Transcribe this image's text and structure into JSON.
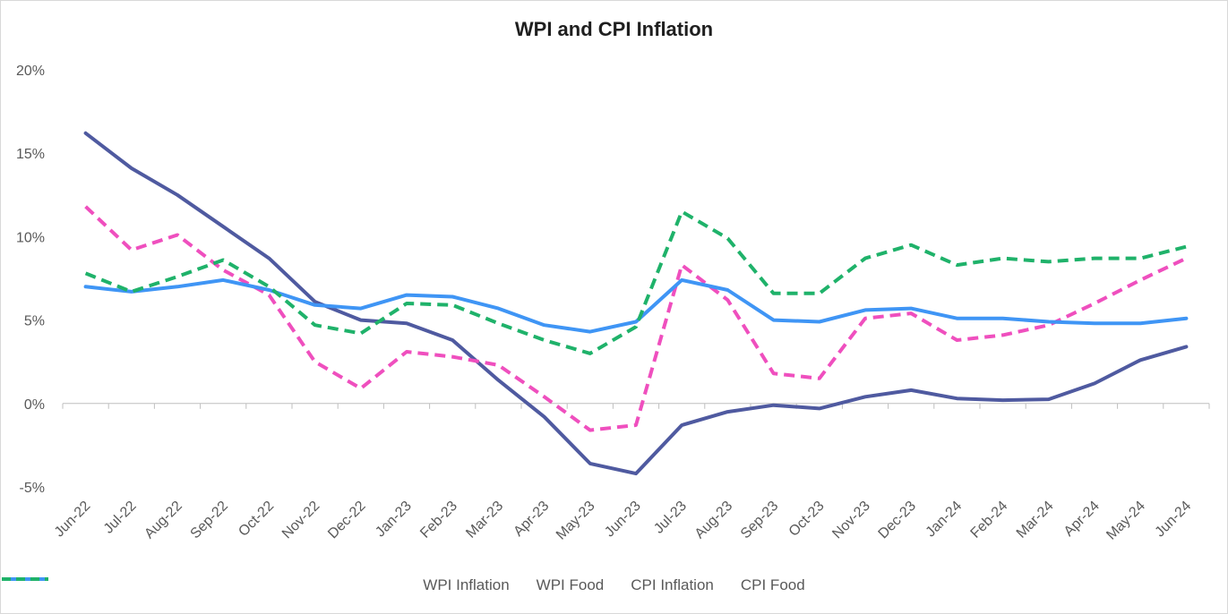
{
  "chart_data": {
    "type": "line",
    "title": "WPI and CPI Inflation",
    "xlabel": "",
    "ylabel": "",
    "ylim": [
      -5,
      20
    ],
    "yticks": [
      20,
      15,
      10,
      5,
      0,
      -5
    ],
    "ytick_labels": [
      "20%",
      "15%",
      "10%",
      "5%",
      "0%",
      "-5%"
    ],
    "categories": [
      "Jun-22",
      "Jul-22",
      "Aug-22",
      "Sep-22",
      "Oct-22",
      "Nov-22",
      "Dec-22",
      "Jan-23",
      "Feb-23",
      "Mar-23",
      "Apr-23",
      "May-23",
      "Jun-23",
      "Jul-23",
      "Aug-23",
      "Sep-23",
      "Oct-23",
      "Nov-23",
      "Dec-23",
      "Jan-24",
      "Feb-24",
      "Mar-24",
      "Apr-24",
      "May-24",
      "Jun-24"
    ],
    "series": [
      {
        "name": "WPI Inflation",
        "color": "#4f5aa0",
        "dash": "solid",
        "values": [
          16.2,
          14.1,
          12.5,
          10.6,
          8.7,
          6.1,
          5.0,
          4.8,
          3.8,
          1.4,
          -0.8,
          -3.6,
          -4.2,
          -1.3,
          -0.5,
          -0.1,
          -0.3,
          0.4,
          0.8,
          0.3,
          0.2,
          0.25,
          1.2,
          2.6,
          3.4
        ]
      },
      {
        "name": "WPI Food",
        "color": "#ef4fbe",
        "dash": "dashed",
        "values": [
          11.8,
          9.2,
          10.1,
          8.0,
          6.5,
          2.5,
          0.9,
          3.1,
          2.8,
          2.3,
          0.4,
          -1.6,
          -1.3,
          8.3,
          6.2,
          1.8,
          1.5,
          5.1,
          5.4,
          3.8,
          4.1,
          4.7,
          6.0,
          7.4,
          8.7
        ]
      },
      {
        "name": "CPI Inflation",
        "color": "#3f95f5",
        "dash": "solid",
        "values": [
          7.0,
          6.7,
          7.0,
          7.4,
          6.8,
          5.9,
          5.7,
          6.5,
          6.4,
          5.7,
          4.7,
          4.3,
          4.9,
          7.4,
          6.8,
          5.0,
          4.9,
          5.6,
          5.7,
          5.1,
          5.1,
          4.9,
          4.8,
          4.8,
          5.1
        ]
      },
      {
        "name": "CPI Food",
        "color": "#1fb26a",
        "dash": "dashed",
        "values": [
          7.8,
          6.7,
          7.6,
          8.6,
          7.0,
          4.7,
          4.2,
          6.0,
          5.9,
          4.8,
          3.8,
          3.0,
          4.6,
          11.5,
          9.9,
          6.6,
          6.6,
          8.7,
          9.5,
          8.3,
          8.7,
          8.5,
          8.7,
          8.7,
          9.4
        ]
      }
    ],
    "grid": false,
    "legend_position": "bottom"
  }
}
